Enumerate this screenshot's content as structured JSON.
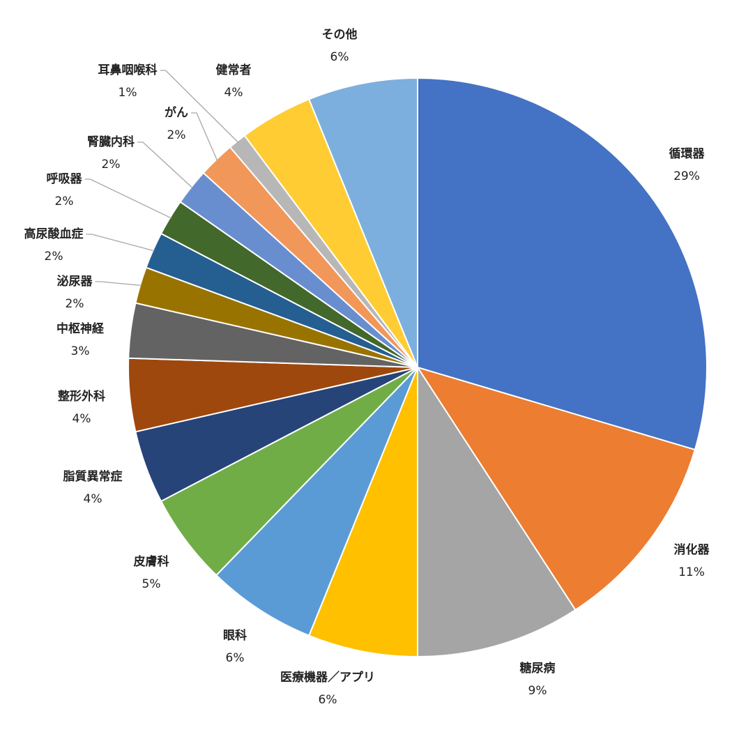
{
  "chart_data": {
    "type": "pie",
    "categories": [
      "循環器",
      "消化器",
      "糖尿病",
      "医療機器／アプリ",
      "眼科",
      "皮膚科",
      "脂質異常症",
      "整形外科",
      "中枢神経",
      "泌尿器",
      "高尿酸血症",
      "呼吸器",
      "腎臓内科",
      "がん",
      "耳鼻咽喉科",
      "健常者",
      "その他"
    ],
    "values": [
      29,
      11,
      9,
      6,
      6,
      5,
      4,
      4,
      3,
      2,
      2,
      2,
      2,
      2,
      1,
      4,
      6
    ],
    "value_labels": [
      "29%",
      "11%",
      "9%",
      "6%",
      "6%",
      "5%",
      "4%",
      "4%",
      "3%",
      "2%",
      "2%",
      "2%",
      "2%",
      "2%",
      "1%",
      "4%",
      "6%"
    ],
    "colors": [
      "#4472c4",
      "#ed7d31",
      "#a5a5a5",
      "#ffc000",
      "#5b9bd5",
      "#70ad47",
      "#264478",
      "#9e480e",
      "#636363",
      "#997300",
      "#255e91",
      "#43682b",
      "#698ed0",
      "#f1975a",
      "#b7b7b7",
      "#ffcd33",
      "#7cafdd"
    ]
  }
}
